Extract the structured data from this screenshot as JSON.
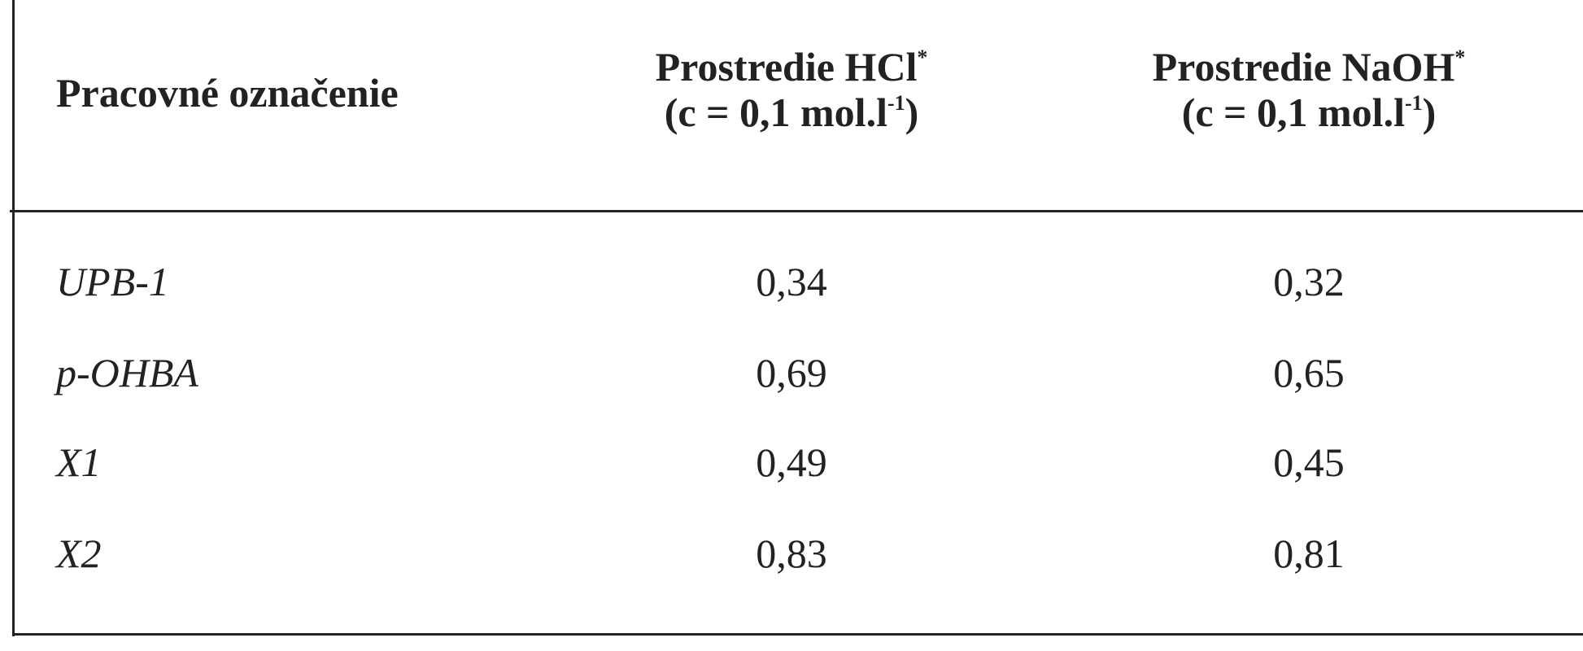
{
  "header": {
    "columns": [
      {
        "title": "Pracovné označenie"
      },
      {
        "title": "Prostredie HCl",
        "mark": "*",
        "unit": "(c = 0,1 mol.l",
        "unit_exp": "-1",
        "unit_close": ")"
      },
      {
        "title": "Prostredie NaOH",
        "mark": "*",
        "unit": "(c = 0,1 mol.l",
        "unit_exp": "-1",
        "unit_close": ")"
      }
    ]
  },
  "table": {
    "rows": [
      [
        "UPB-1",
        "0,34",
        "0,32"
      ],
      [
        "p-OHBA",
        "0,69",
        "0,65"
      ],
      [
        "X1",
        "0,49",
        "0,45"
      ],
      [
        "X2",
        "0,83",
        "0,81"
      ]
    ]
  }
}
